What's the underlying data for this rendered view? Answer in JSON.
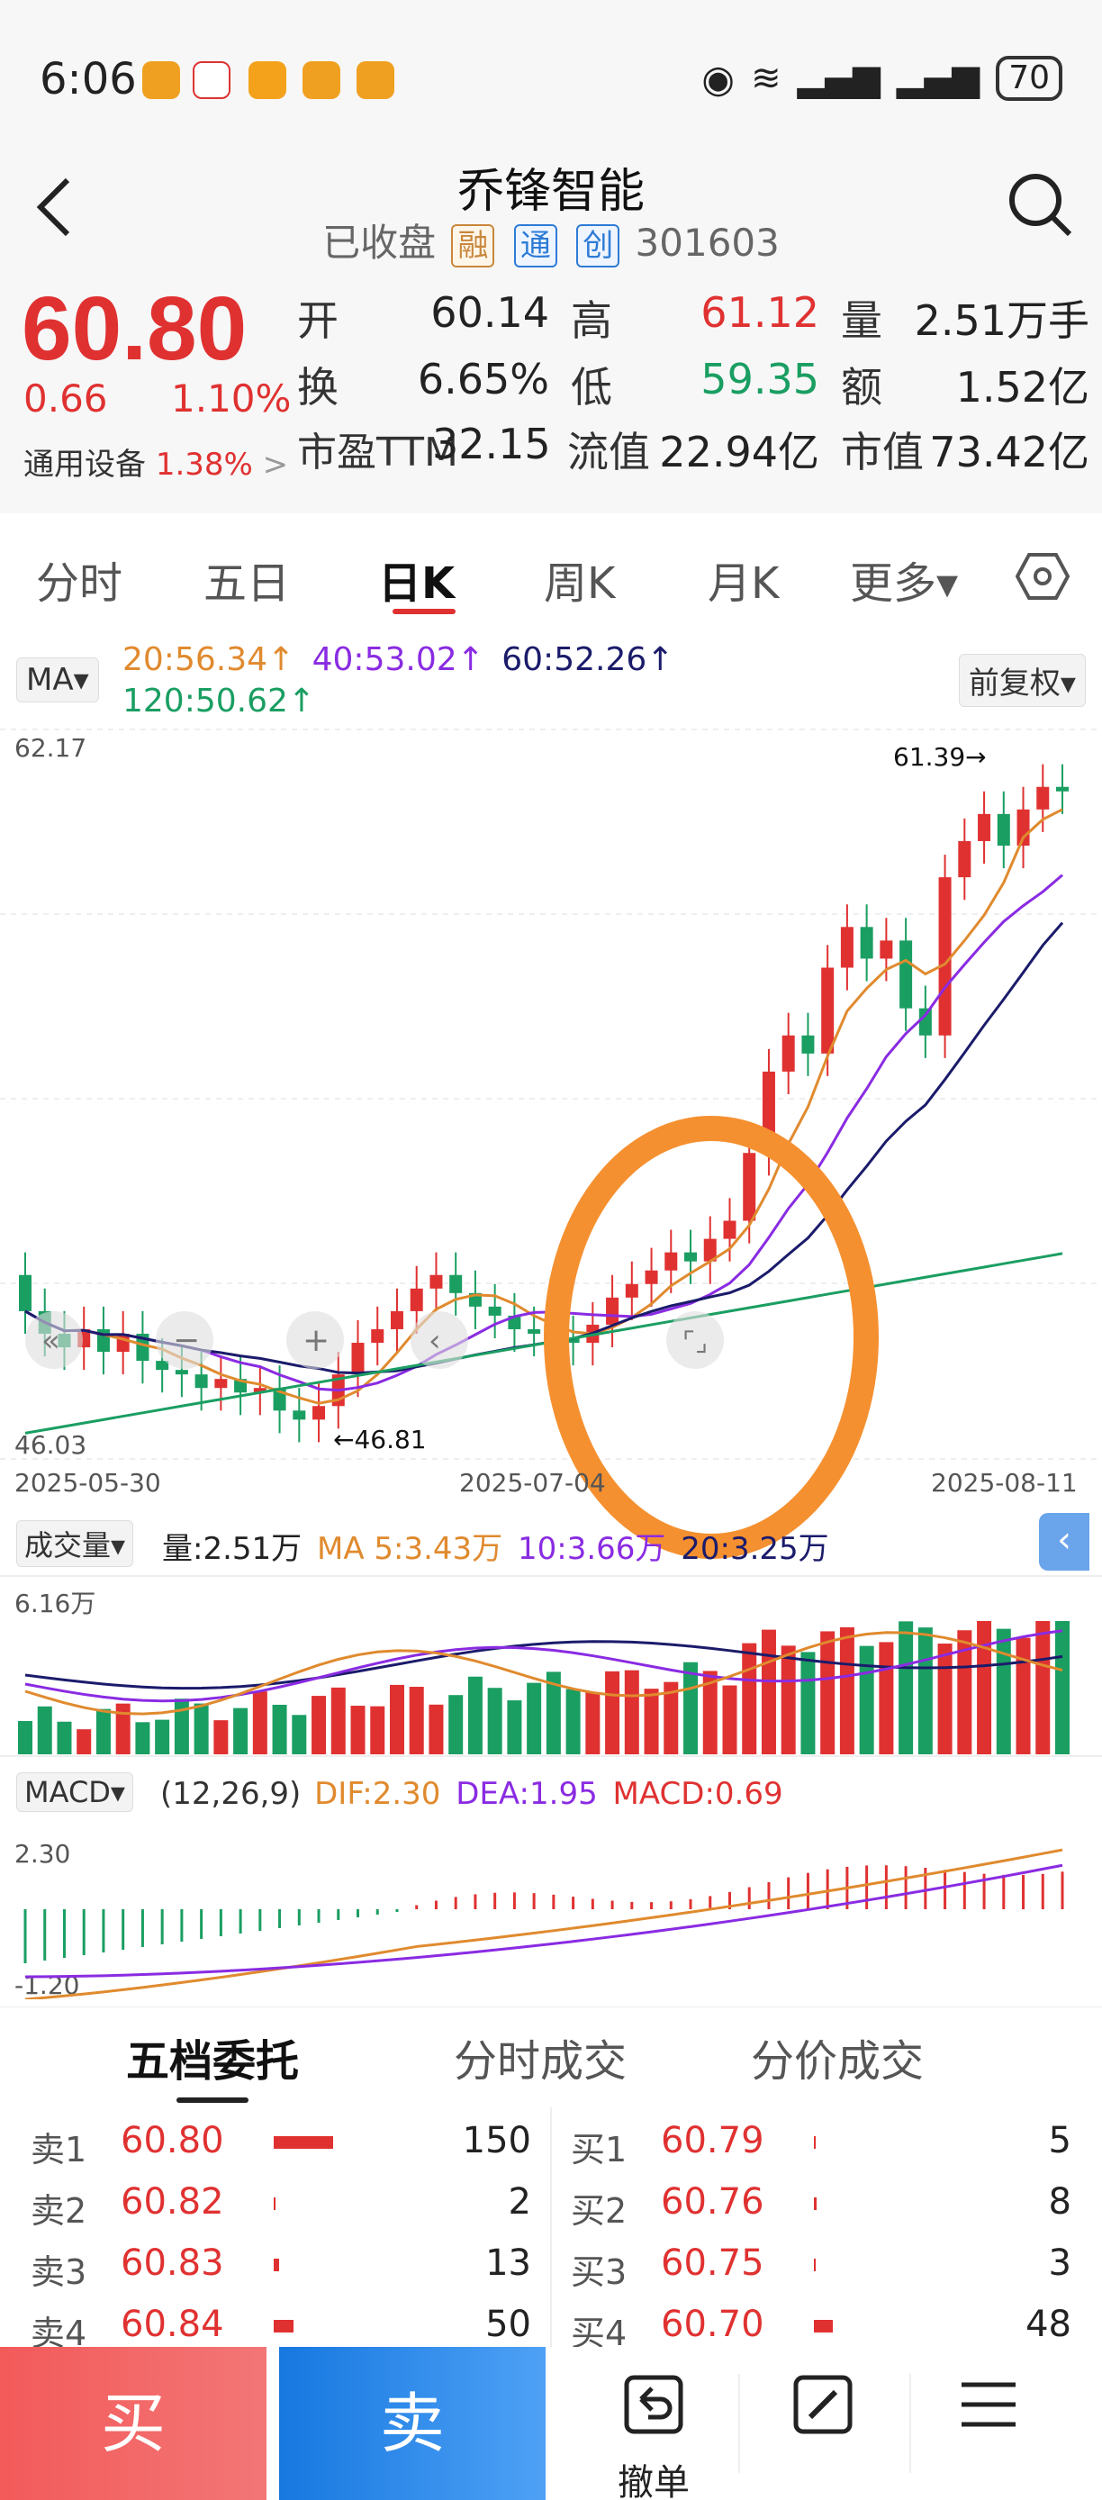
{
  "status": {
    "time": "6:06",
    "battery": "70"
  },
  "header": {
    "title": "乔锋智能",
    "state": "已收盘",
    "tag_rong": "融",
    "tag_tong": "通",
    "tag_chuang": "创",
    "code": "301603"
  },
  "quote": {
    "price": "60.80",
    "change": "0.66",
    "change_pct": "1.10%",
    "sector": "通用设备",
    "sector_pct": "1.38%",
    "open_label": "开",
    "open": "60.14",
    "high_label": "高",
    "high": "61.12",
    "vol_label": "量",
    "vol": "2.51万手",
    "turnover_label": "换",
    "turnover": "6.65%",
    "low_label": "低",
    "low": "59.35",
    "amount_label": "额",
    "amount": "1.52亿",
    "pe_label": "市盈TTM",
    "pe": "32.15",
    "float_label": "流值",
    "float": "22.94亿",
    "mcap_label": "市值",
    "mcap": "73.42亿"
  },
  "period_tabs": [
    "分时",
    "五日",
    "日K",
    "周K",
    "月K",
    "更多▾"
  ],
  "ma": {
    "select": "MA▾",
    "ma20": "20:56.34↑",
    "ma40": "40:53.02↑",
    "ma60": "60:52.26↑",
    "ma120": "120:50.62↑",
    "adjust": "前复权▾"
  },
  "kline": {
    "y_top": "62.17",
    "y_bottom": "46.03",
    "high_mark": "61.39→",
    "low_mark": "←46.81",
    "dates": [
      "2025-05-30",
      "2025-07-04",
      "2025-08-11"
    ]
  },
  "volume": {
    "select": "成交量▾",
    "vol_text": "量:2.51万",
    "ma5": "MA 5:3.43万",
    "ma10": "10:3.66万",
    "ma20": "20:3.25万",
    "y_top": "6.16万"
  },
  "macd": {
    "select": "MACD▾",
    "params": "(12,26,9)",
    "dif": "DIF:2.30",
    "dea": "DEA:1.95",
    "macd": "MACD:0.69",
    "y_top": "2.30",
    "y_bottom": "-1.20"
  },
  "book_tabs": [
    "五档委托",
    "分时成交",
    "分价成交"
  ],
  "sell_rows": [
    {
      "label": "卖1",
      "price": "60.80",
      "vol": "150",
      "bar": 1.0
    },
    {
      "label": "卖2",
      "price": "60.82",
      "vol": "2",
      "bar": 0.013
    },
    {
      "label": "卖3",
      "price": "60.83",
      "vol": "13",
      "bar": 0.087
    },
    {
      "label": "卖4",
      "price": "60.84",
      "vol": "50",
      "bar": 0.33
    }
  ],
  "buy_rows": [
    {
      "label": "买1",
      "price": "60.79",
      "vol": "5",
      "bar": 0.033
    },
    {
      "label": "买2",
      "price": "60.76",
      "vol": "8",
      "bar": 0.053
    },
    {
      "label": "买3",
      "price": "60.75",
      "vol": "3",
      "bar": 0.02
    },
    {
      "label": "买4",
      "price": "60.70",
      "vol": "48",
      "bar": 0.32
    }
  ],
  "bottom": {
    "buy": "买",
    "sell": "卖",
    "cancel": "撤单"
  }
}
